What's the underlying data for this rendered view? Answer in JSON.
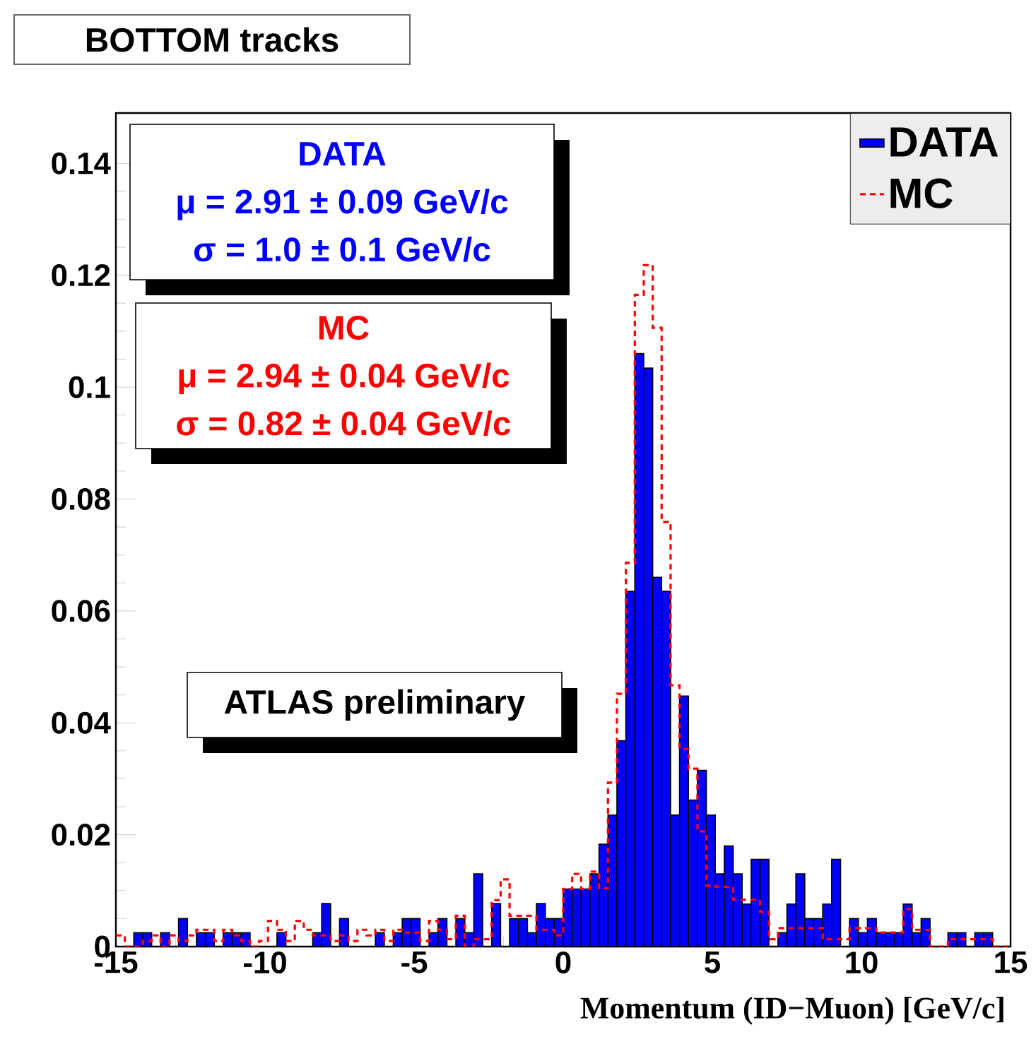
{
  "chart_data": {
    "type": "histogram",
    "title": "BOTTOM tracks",
    "xlabel": "Momentum (ID−Muon) [GeV/c]",
    "annotations": [
      "DATA",
      "μ = 2.91 ± 0.09 GeV/c",
      "σ = 1.0 ± 0.1 GeV/c",
      "MC",
      "μ = 2.94 ± 0.04 GeV/c",
      "σ = 0.82 ± 0.04 GeV/c",
      "ATLAS preliminary"
    ],
    "bins": [
      -15,
      -14.7,
      -14.4,
      -14.1,
      -13.8,
      -13.5,
      -13.2,
      -12.9,
      -12.6,
      -12.3,
      -12,
      -11.7,
      -11.4,
      -11.1,
      -10.8,
      -10.5,
      -10.2,
      -9.9,
      -9.6,
      -9.3,
      -9,
      -8.7,
      -8.4,
      -8.1,
      -7.8,
      -7.5,
      -7.2,
      -6.9,
      -6.6,
      -6.3,
      -6,
      -5.7,
      -5.4,
      -5.1,
      -4.8,
      -4.5,
      -4.2,
      -3.9,
      -3.6,
      -3.3,
      -3,
      -2.7,
      -2.4,
      -2.1,
      -1.8,
      -1.5,
      -1.2,
      -0.9,
      -0.6,
      -0.3,
      0,
      0.3,
      0.6,
      0.9,
      1.2,
      1.5,
      1.8,
      2.1,
      2.4,
      2.7,
      3,
      3.3,
      3.6,
      3.9,
      4.2,
      4.5,
      4.8,
      5.1,
      5.4,
      5.7,
      6,
      6.3,
      6.6,
      6.9,
      7.2,
      7.5,
      7.8,
      8.1,
      8.4,
      8.7,
      9,
      9.3,
      9.6,
      9.9,
      10.2,
      10.5,
      10.8,
      11.1,
      11.4,
      11.7,
      12,
      12.3,
      12.6,
      12.9,
      13.2,
      13.5,
      13.8,
      14.1,
      14.4,
      14.7,
      15
    ],
    "series": [
      {
        "name": "DATA",
        "color": "#0000ff",
        "values": [
          0,
          0,
          0.0025,
          0.0025,
          0,
          0.0025,
          0,
          0.005,
          0,
          0.0025,
          0.0025,
          0,
          0.0025,
          0.0025,
          0.0025,
          0,
          0,
          0,
          0.0025,
          0,
          0,
          0,
          0.0025,
          0.0077,
          0,
          0.005,
          0,
          0,
          0,
          0.0025,
          0,
          0.0025,
          0.005,
          0.005,
          0,
          0.0025,
          0.005,
          0,
          0.005,
          0.0025,
          0.013,
          0,
          0.0077,
          0,
          0.005,
          0.005,
          0.0025,
          0.0077,
          0.005,
          0.005,
          0.0103,
          0.0103,
          0.0103,
          0.013,
          0.0183,
          0.0235,
          0.0368,
          0.0635,
          0.106,
          0.1034,
          0.066,
          0.0635,
          0.0235,
          0.0448,
          0.0262,
          0.0315,
          0.0235,
          0.013,
          0.018,
          0.013,
          0.0076,
          0.0156,
          0.0156,
          0,
          0.0025,
          0.0076,
          0.013,
          0.005,
          0.005,
          0.0076,
          0.0156,
          0,
          0.005,
          0.0025,
          0.005,
          0.0025,
          0.0025,
          0.0025,
          0.0076,
          0.0025,
          0.005,
          0,
          0,
          0.0025,
          0.0025,
          0,
          0.0025,
          0.0025,
          0,
          0
        ]
      },
      {
        "name": "MC",
        "type": "step",
        "line_style": "dashed",
        "color": "#ff0000",
        "x": [
          -15,
          -14.7,
          -14.4,
          -14.1,
          -13.8,
          -13.5,
          -13.2,
          -12.9,
          -12.6,
          -12.3,
          -12,
          -11.7,
          -11.4,
          -11.1,
          -10.8,
          -10.5,
          -10.2,
          -9.9,
          -9.6,
          -9.3,
          -9,
          -8.7,
          -8.4,
          -8.1,
          -7.8,
          -7.5,
          -7.2,
          -6.9,
          -6.6,
          -6.3,
          -6,
          -5.7,
          -5.4,
          -5.1,
          -4.8,
          -4.5,
          -4.2,
          -3.9,
          -3.6,
          -3.3,
          -3,
          -2.7,
          -2.4,
          -2.1,
          -1.8,
          -1.5,
          -1.2,
          -0.9,
          -0.6,
          -0.3,
          0,
          0.3,
          0.6,
          0.9,
          1.2,
          1.5,
          1.8,
          2.1,
          2.4,
          2.7,
          3,
          3.3,
          3.6,
          3.9,
          4.2,
          4.5,
          4.8,
          5.1,
          5.4,
          5.7,
          6,
          6.3,
          6.6,
          6.9,
          7.2,
          7.5,
          7.8,
          8.1,
          8.4,
          8.7,
          9,
          9.3,
          9.6,
          9.9,
          10.2,
          10.5,
          10.8,
          11.1,
          11.4,
          11.7,
          12,
          12.3,
          12.6,
          12.9,
          13.2,
          13.5,
          13.8,
          14.1,
          14.4,
          14.7,
          15
        ],
        "values": [
          0.002,
          0,
          0,
          0.001,
          0.002,
          0,
          0.002,
          0.001,
          0.002,
          0.003,
          0.003,
          0.001,
          0.003,
          0.002,
          0.001,
          0,
          0.001,
          0.0046,
          0.003,
          0.001,
          0.0046,
          0.003,
          0.002,
          0.002,
          0.001,
          0.002,
          0.001,
          0.003,
          0.002,
          0.003,
          0.001,
          0.003,
          0.0025,
          0.0025,
          0.001,
          0.0046,
          0.003,
          0.0013,
          0.0055,
          0,
          0.0013,
          0.0013,
          0.0083,
          0.012,
          0.0055,
          0.0055,
          0.0055,
          0.003,
          0.003,
          0.002,
          0.0103,
          0.013,
          0.0103,
          0.0134,
          0.0104,
          0.0293,
          0.0452,
          0.0686,
          0.1165,
          0.1218,
          0.1106,
          0.0759,
          0.0467,
          0.0353,
          0.0318,
          0.0206,
          0.0109,
          0.0107,
          0.0107,
          0.0084,
          0.0084,
          0.0084,
          0.0062,
          0.0013,
          0.0033,
          0.0033,
          0.0033,
          0.0033,
          0.0033,
          0.0013,
          0.0013,
          0.0013,
          0.0033,
          0.0033,
          0.0033,
          0.0025,
          0.0025,
          0.0025,
          0.0067,
          0.003,
          0.003,
          0,
          0,
          0.0013,
          0.0013,
          0.0013,
          0.0013,
          0.0013,
          0,
          0,
          0
        ]
      }
    ],
    "xlim": [
      -15,
      15
    ],
    "ylim": [
      0,
      0.149
    ],
    "xticks": [
      -15,
      -10,
      -5,
      0,
      5,
      10,
      15
    ],
    "yticks": [
      0,
      0.02,
      0.04,
      0.06,
      0.08,
      0.1,
      0.12,
      0.14
    ],
    "legend": "top right"
  }
}
